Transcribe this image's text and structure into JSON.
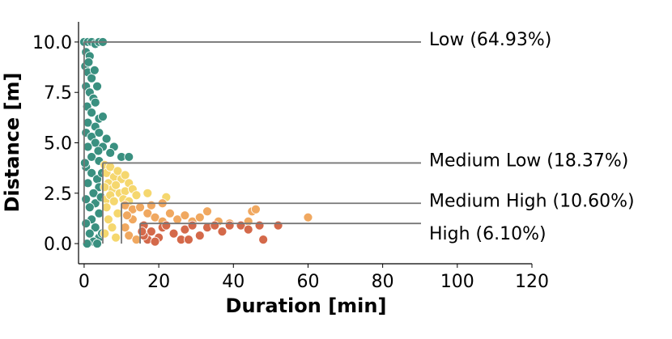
{
  "chart_data": {
    "type": "scatter",
    "x_label": "Duration [min]",
    "y_label": "Distance [m]",
    "xlim": [
      -1.5,
      120
    ],
    "ylim": [
      -1,
      11
    ],
    "xticks": [
      0,
      20,
      40,
      60,
      80,
      100,
      120
    ],
    "yticks": [
      {
        "value": 0,
        "label": "0.0"
      },
      {
        "value": 2.5,
        "label": "2.5"
      },
      {
        "value": 5,
        "label": "5.0"
      },
      {
        "value": 7.5,
        "label": "7.5"
      },
      {
        "value": 10,
        "label": "10.0"
      }
    ],
    "grid": false,
    "series": [
      {
        "name": "Low",
        "color": "#3a9080",
        "x": [
          0,
          1,
          2,
          3,
          4,
          5,
          0.5,
          1.5,
          0.3,
          1,
          2,
          0.5,
          1.5,
          2.5,
          3,
          0.8,
          2,
          4,
          5,
          1,
          3,
          0.5,
          2,
          4,
          6,
          3,
          1,
          5,
          8,
          7,
          10,
          12,
          2,
          4,
          0.5,
          2,
          3.5,
          1,
          4,
          2.5,
          0.5,
          3,
          1.5,
          4,
          2,
          0.5,
          3,
          1.5,
          4,
          2.5,
          0.8,
          3.5,
          4.8,
          4.5,
          4.8,
          1.2,
          2.8,
          3.5,
          3.8,
          0.2
        ],
        "y": [
          10,
          10,
          10,
          9.9,
          10,
          10,
          9.5,
          9.3,
          8.8,
          8.5,
          8.2,
          7.8,
          7.5,
          7.2,
          7,
          6.8,
          6.5,
          6.2,
          6.3,
          6,
          5.8,
          5.5,
          5.3,
          5.5,
          5.2,
          5,
          4.8,
          4.8,
          4.8,
          4.5,
          4.3,
          4.3,
          4.3,
          4.1,
          3.8,
          3.5,
          3.2,
          3,
          2.8,
          2.5,
          2.2,
          2,
          1.8,
          1.5,
          1.2,
          1,
          0.8,
          0.5,
          0.3,
          0.1,
          0,
          0,
          0.5,
          2.3,
          3.5,
          9,
          8.6,
          7.8,
          4.6,
          4
        ]
      },
      {
        "name": "Medium Low",
        "color": "#f5d76e",
        "x": [
          5.5,
          6,
          7,
          8,
          9,
          10,
          11,
          12,
          6.5,
          7.5,
          8.5,
          9.5,
          11,
          13,
          14,
          17,
          22,
          6,
          7,
          5.5,
          8,
          10.5,
          12,
          9,
          6.5,
          7.5,
          5.5,
          8.5,
          6
        ],
        "y": [
          3.9,
          3.5,
          3.8,
          3.3,
          3.6,
          3.2,
          3.4,
          3,
          3,
          2.7,
          2.9,
          2.5,
          2.6,
          2.7,
          2.4,
          2.5,
          2.3,
          2.2,
          2.4,
          2.8,
          2.1,
          2.2,
          2.1,
          1.5,
          1.2,
          0.8,
          0.5,
          0.3,
          1.8
        ]
      },
      {
        "name": "Medium High",
        "color": "#f0a860",
        "x": [
          11,
          13,
          15,
          17,
          19,
          21,
          23,
          25,
          27,
          29,
          31,
          33,
          36,
          39,
          45,
          46,
          60,
          44,
          11,
          12,
          13,
          14,
          11.5,
          18,
          21
        ],
        "y": [
          1.9,
          1.7,
          1.8,
          1.5,
          1.3,
          1.1,
          1.5,
          1.2,
          1.4,
          1.1,
          1.3,
          1.6,
          1.1,
          1,
          1.6,
          1.7,
          1.3,
          1.1,
          0.8,
          0.4,
          1.2,
          0.2,
          1.4,
          1.9,
          2
        ]
      },
      {
        "name": "High",
        "color": "#d4694a",
        "x": [
          16,
          17,
          18,
          20,
          21,
          22,
          24,
          26,
          27,
          29,
          31,
          33,
          35,
          37,
          39,
          42,
          44,
          47,
          48,
          52,
          16,
          19,
          28,
          15.5
        ],
        "y": [
          0.9,
          0.2,
          0.6,
          0.3,
          0.8,
          0.9,
          0.5,
          0.2,
          0.7,
          0.9,
          0.4,
          0.8,
          0.9,
          0.6,
          0.9,
          0.9,
          0.7,
          0.9,
          0.2,
          0.9,
          0.4,
          0.1,
          0.2,
          0.6
        ]
      }
    ],
    "thresholds": [
      {
        "label": "Low (64.93%)",
        "x": 0,
        "y": 10
      },
      {
        "label": "Medium Low (18.37%)",
        "x": 5,
        "y": 4
      },
      {
        "label": "Medium High (10.60%)",
        "x": 10,
        "y": 2
      },
      {
        "label": "High (6.10%)",
        "x": 15,
        "y": 1
      }
    ]
  }
}
